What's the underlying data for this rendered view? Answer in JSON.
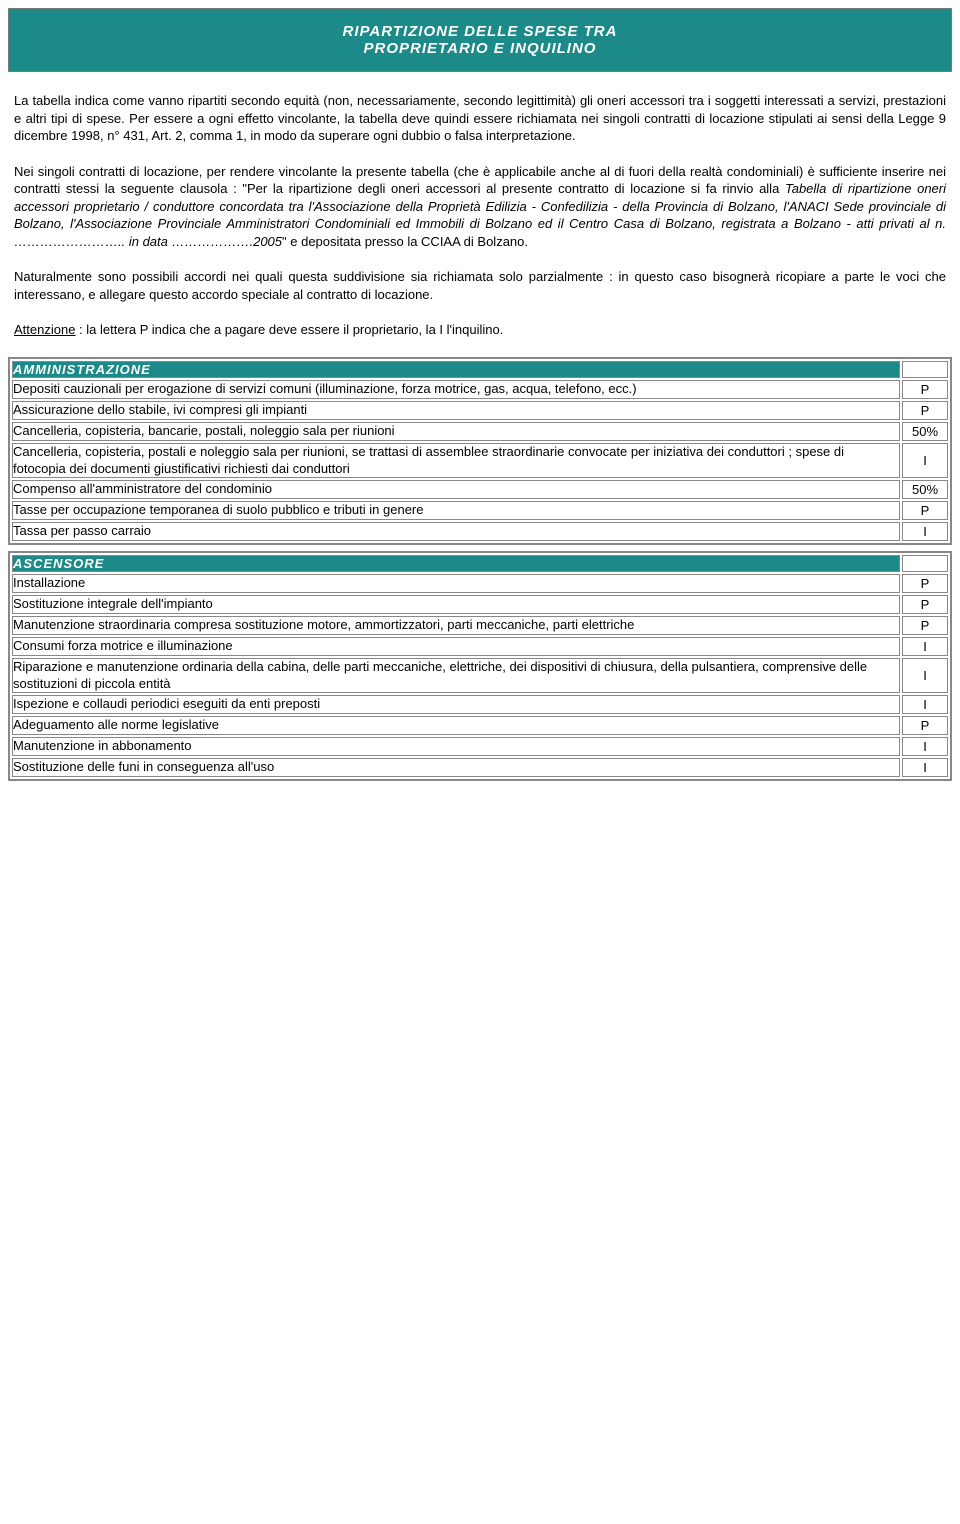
{
  "colors": {
    "accent": "#1b8a88",
    "border": "#888888",
    "text": "#000000",
    "background": "#ffffff"
  },
  "header": {
    "line1": "RIPARTIZIONE DELLE SPESE TRA",
    "line2": "PROPRIETARIO E INQUILINO"
  },
  "intro": {
    "p1": "La tabella indica come vanno ripartiti secondo equità (non, necessariamente, secondo legittimità) gli oneri accessori tra i soggetti interessati a servizi, prestazioni e altri tipi di spese. Per essere a ogni effetto vincolante, la tabella deve quindi essere richiamata nei singoli contratti di locazione stipulati ai sensi della Legge 9 dicembre 1998, n° 431, Art. 2, comma 1, in modo da superare ogni dubbio o falsa interpretazione.",
    "p2a": "Nei singoli contratti di locazione, per rendere vincolante la presente tabella (che è applicabile anche al di fuori della realtà condominiali) è sufficiente inserire nei contratti stessi la seguente clausola : \"Per la ripartizione degli oneri accessori al presente contratto di locazione si fa rinvio alla ",
    "p2_italic": "Tabella di ripartizione oneri accessori proprietario / conduttore concordata tra l'Associazione della Proprietà Edilizia - Confedilizia - della Provincia di Bolzano, l'ANACI Sede provinciale di Bolzano, l'Associazione Provinciale Amministratori Condominiali ed Immobili di Bolzano ed il Centro Casa di Bolzano, registrata a Bolzano - atti privati al n. …………………….. in data ……………….2005",
    "p2b": "\" e depositata presso la CCIAA di Bolzano.",
    "p3": "Naturalmente sono possibili accordi nei quali questa suddivisione sia richiamata solo parzialmente : in questo caso bisognerà ricopiare a parte le voci che interessano, e allegare questo accordo speciale al contratto di locazione.",
    "p4_attn": "Attenzione",
    "p4_rest": " : la lettera P indica che a pagare deve essere il proprietario, la I l'inquilino."
  },
  "sections": [
    {
      "title": "AMMINISTRAZIONE",
      "rows": [
        {
          "label": "Depositi cauzionali per erogazione di servizi comuni (illuminazione, forza motrice, gas, acqua, telefono, ecc.)",
          "value": "P"
        },
        {
          "label": "Assicurazione dello stabile, ivi compresi gli impianti",
          "value": "P"
        },
        {
          "label": "Cancelleria, copisteria, bancarie, postali, noleggio sala per riunioni",
          "value": "50%"
        },
        {
          "label": "Cancelleria, copisteria, postali e noleggio sala per riunioni, se trattasi di assemblee straordinarie convocate per iniziativa dei conduttori ; spese di fotocopia dei documenti giustificativi richiesti dai conduttori",
          "value": "I"
        },
        {
          "label": "Compenso all'amministratore del condominio",
          "value": "50%"
        },
        {
          "label": "Tasse per occupazione temporanea di suolo pubblico e tributi in genere",
          "value": "P"
        },
        {
          "label": "Tassa per passo carraio",
          "value": "I"
        }
      ]
    },
    {
      "title": "ASCENSORE",
      "rows": [
        {
          "label": "Installazione",
          "value": "P"
        },
        {
          "label": "Sostituzione integrale dell'impianto",
          "value": "P"
        },
        {
          "label": "Manutenzione straordinaria compresa sostituzione motore, ammortizzatori, parti meccaniche, parti elettriche",
          "value": "P"
        },
        {
          "label": "Consumi forza motrice e illuminazione",
          "value": "I"
        },
        {
          "label": "Riparazione e manutenzione ordinaria della cabina, delle parti meccaniche, elettriche, dei dispositivi di chiusura, della pulsantiera, comprensive delle sostituzioni di piccola entità",
          "value": "I"
        },
        {
          "label": "Ispezione e collaudi periodici eseguiti da enti preposti",
          "value": "I"
        },
        {
          "label": "Adeguamento alle norme legislative",
          "value": "P"
        },
        {
          "label": "Manutenzione in abbonamento",
          "value": "I"
        },
        {
          "label": "Sostituzione delle funi in conseguenza all'uso",
          "value": "I"
        }
      ]
    }
  ]
}
